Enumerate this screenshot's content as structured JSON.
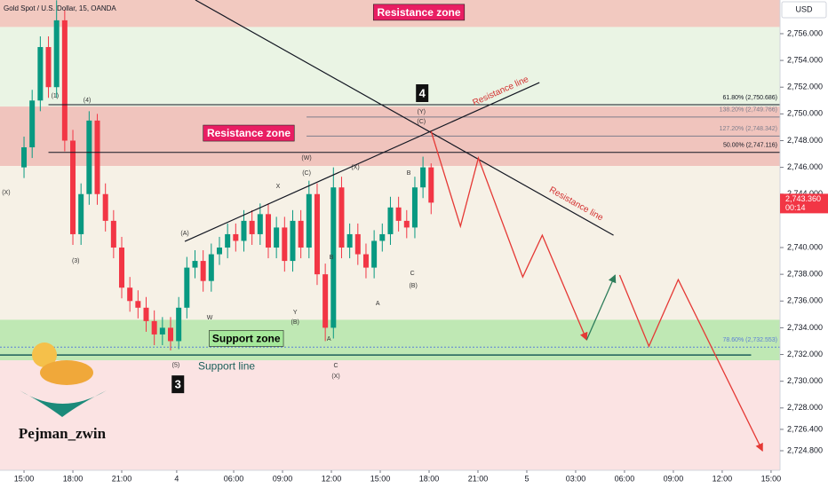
{
  "chart_data": {
    "type": "candlestick",
    "title": "Gold Spot / U.S. Dollar, 15, OANDA",
    "currency": "USD",
    "watermark": "Pejman_zwin",
    "up_color": "#089981",
    "down_color": "#f23645",
    "xlim": [
      -5.9,
      185.7
    ],
    "ylim": [
      2723.34,
      2758.52
    ],
    "xticks": [
      {
        "value": 0,
        "label": "15:00"
      },
      {
        "value": 12,
        "label": "18:00"
      },
      {
        "value": 24,
        "label": "21:00"
      },
      {
        "value": 37.5,
        "label": "4"
      },
      {
        "value": 51.5,
        "label": "06:00"
      },
      {
        "value": 63.5,
        "label": "09:00"
      },
      {
        "value": 75.5,
        "label": "12:00"
      },
      {
        "value": 87.5,
        "label": "15:00"
      },
      {
        "value": 99.5,
        "label": "18:00"
      },
      {
        "value": 111.5,
        "label": "21:00"
      },
      {
        "value": 123.5,
        "label": "5"
      },
      {
        "value": 135.5,
        "label": "03:00"
      },
      {
        "value": 147.5,
        "label": "06:00"
      },
      {
        "value": 159.5,
        "label": "09:00"
      },
      {
        "value": 171.5,
        "label": "12:00"
      },
      {
        "value": 183.5,
        "label": "15:00"
      }
    ],
    "yticks": [
      {
        "value": 2756,
        "label": "2,756.000"
      },
      {
        "value": 2754,
        "label": "2,754.000"
      },
      {
        "value": 2752,
        "label": "2,752.000"
      },
      {
        "value": 2750,
        "label": "2,750.000"
      },
      {
        "value": 2748,
        "label": "2,748.000"
      },
      {
        "value": 2746,
        "label": "2,746.000"
      },
      {
        "value": 2744,
        "label": "2,744.000"
      },
      {
        "value": 2740,
        "label": "2,740.000"
      },
      {
        "value": 2738,
        "label": "2,738.000"
      },
      {
        "value": 2736,
        "label": "2,736.000"
      },
      {
        "value": 2734,
        "label": "2,734.000"
      },
      {
        "value": 2732,
        "label": "2,732.000"
      },
      {
        "value": 2730,
        "label": "2,730.000"
      },
      {
        "value": 2728,
        "label": "2,728.000"
      },
      {
        "value": 2726.4,
        "label": "2,726.400"
      },
      {
        "value": 2724.8,
        "label": "2,724.800"
      }
    ],
    "last_price": {
      "value": 2743.36,
      "label": "2,743.360",
      "countdown": "00:14"
    },
    "x": [
      0,
      2,
      4,
      6,
      8,
      10,
      12,
      14,
      16,
      18,
      20,
      22,
      24,
      26,
      28,
      30,
      32,
      34,
      36,
      38,
      40,
      42,
      44,
      46,
      48,
      50,
      52,
      54,
      56,
      58,
      60,
      62,
      64,
      66,
      68,
      70,
      72,
      74,
      76,
      78,
      80,
      82,
      84,
      86,
      88,
      90,
      92,
      94,
      96,
      98,
      100
    ],
    "open": [
      2746,
      2747.5,
      2751,
      2755,
      2752,
      2757,
      2748,
      2741,
      2744,
      2749.5,
      2744,
      2742,
      2740,
      2737,
      2736,
      2735.5,
      2734.5,
      2733.5,
      2734,
      2733,
      2735.5,
      2738.5,
      2739,
      2737.5,
      2739.5,
      2740,
      2741,
      2740.5,
      2742,
      2741,
      2742.5,
      2740,
      2741.5,
      2739,
      2742,
      2740,
      2744,
      2738,
      2734,
      2744.5,
      2740,
      2741,
      2739.5,
      2738.5,
      2740.5,
      2741,
      2743,
      2742,
      2741.5,
      2744.5,
      2746
    ],
    "high": [
      2748.3,
      2751.8,
      2755.8,
      2755.8,
      2758.5,
      2757.8,
      2748.8,
      2744.8,
      2750.2,
      2750,
      2744.8,
      2742.8,
      2740.8,
      2737.8,
      2736.8,
      2736.3,
      2735.3,
      2734.8,
      2734.8,
      2736.3,
      2739.3,
      2739.8,
      2739.8,
      2740.3,
      2740.8,
      2741.8,
      2741.8,
      2742.8,
      2742.8,
      2743.3,
      2743.3,
      2742.3,
      2742.3,
      2742.8,
      2742.8,
      2745,
      2744.8,
      2738.8,
      2746,
      2745.3,
      2741.8,
      2741.8,
      2740.3,
      2741.3,
      2741.8,
      2743.8,
      2743.8,
      2742.8,
      2745.3,
      2746.8,
      2746.3
    ],
    "low": [
      2745.2,
      2746.7,
      2750.2,
      2751.2,
      2751.2,
      2747.2,
      2740.2,
      2740.2,
      2743.2,
      2743.2,
      2741.2,
      2739.2,
      2736.2,
      2735.2,
      2734.7,
      2733.7,
      2732.7,
      2732.7,
      2732.3,
      2732.4,
      2734.7,
      2737.7,
      2736.7,
      2736.7,
      2738.7,
      2739.2,
      2739.7,
      2739.7,
      2740.2,
      2740.2,
      2739.2,
      2739.2,
      2738.2,
      2738.2,
      2739.2,
      2739.2,
      2737.2,
      2733,
      2733.2,
      2739.2,
      2739.2,
      2738.7,
      2737.7,
      2737.7,
      2739.7,
      2740.2,
      2741.2,
      2740.7,
      2740.7,
      2743.7,
      2742.5
    ],
    "close": [
      2747.5,
      2751,
      2755,
      2752,
      2757,
      2748,
      2741,
      2744,
      2749.5,
      2744,
      2742,
      2740,
      2737,
      2736,
      2735.5,
      2734.5,
      2733.5,
      2734,
      2733,
      2735.5,
      2738.5,
      2739,
      2737.5,
      2739.5,
      2740,
      2741,
      2740.5,
      2742,
      2741,
      2742.5,
      2740,
      2741.5,
      2739,
      2742,
      2740,
      2744,
      2738,
      2734,
      2744.5,
      2740,
      2741,
      2739.5,
      2738.5,
      2740.5,
      2741,
      2743,
      2742,
      2741.5,
      2744.5,
      2746,
      2743.36
    ],
    "bands": [
      {
        "from": 2756.5,
        "to": 2758.52,
        "color": "#f2c9c0"
      },
      {
        "from": 2750.55,
        "to": 2756.5,
        "color": "#eaf4e4"
      },
      {
        "from": 2746.1,
        "to": 2750.55,
        "color": "#f0c4bd"
      },
      {
        "from": 2734.6,
        "to": 2746.1,
        "color": "#f6f1e6"
      },
      {
        "from": 2731.56,
        "to": 2734.6,
        "color": "#bfe8b4"
      },
      {
        "from": 2723.34,
        "to": 2731.56,
        "color": "#fbe3e3"
      }
    ],
    "zones": [
      {
        "label": "Resistance zone",
        "x": 97,
        "y": 2757.6,
        "color": "#e91e63",
        "text_color": "#ffffff"
      },
      {
        "label": "Resistance zone",
        "x": 55.2,
        "y": 2748.56,
        "color": "#e91e63",
        "text_color": "#ffffff"
      },
      {
        "label": "Support zone",
        "x": 54.6,
        "y": 2733.2,
        "color": "#a5e89a",
        "text_color": "#000000"
      }
    ],
    "lines": [
      {
        "name": "Resistance line",
        "x": [
          42.1,
          144.8
        ],
        "y": [
          2758.52,
          2740.92
        ],
        "color": "#131722",
        "label_color": "#d32f2f"
      },
      {
        "name": "Resistance line",
        "x": [
          39.5,
          126.6
        ],
        "y": [
          2740.46,
          2752.34
        ],
        "color": "#131722",
        "label_color": "#d32f2f"
      },
      {
        "name": "Support line",
        "x": [
          -5.9,
          178.6
        ],
        "y": [
          2731.96,
          2731.96
        ],
        "color": "#1b5e5a",
        "label_color": "#1b5e5a"
      }
    ],
    "fib_levels": [
      {
        "label": "61.80% (2,750.686)",
        "value": 2750.686,
        "start": 6,
        "color": "#131722"
      },
      {
        "label": "138.20% (2,749.766)",
        "value": 2749.766,
        "start": 69.4,
        "color": "#7e7e8c"
      },
      {
        "label": "127.20% (2,748.342)",
        "value": 2748.342,
        "start": 69.4,
        "color": "#7e7e8c"
      },
      {
        "label": "50.00% (2,747.116)",
        "value": 2747.116,
        "start": 6,
        "color": "#131722"
      },
      {
        "label": "78.60% (2,732.553)",
        "value": 2732.553,
        "start": -5.9,
        "color": "#5b7fd6"
      }
    ],
    "projection": [
      {
        "color": "#e53935",
        "x": [
          100,
          107.2,
          111.6,
          122.5,
          127.3,
          138.2
        ],
        "y": [
          2748.69,
          2741.59,
          2746.7,
          2737.8,
          2740.92,
          2733.09
        ]
      },
      {
        "color": "#2e7d5b",
        "x": [
          138.2,
          145.2
        ],
        "y": [
          2733.09,
          2737.94
        ]
      },
      {
        "color": "#e53935",
        "x": [
          146.3,
          153.5,
          160.7,
          181.4
        ],
        "y": [
          2737.94,
          2732.62,
          2737.6,
          2724.79
        ]
      }
    ],
    "wave_labels": [
      {
        "text": "4",
        "x": 97.8,
        "y": 2751.55
      },
      {
        "text": "3",
        "x": 37.8,
        "y": 2729.77
      }
    ],
    "annotations": [
      {
        "text": "(X)",
        "x": -4.4,
        "y": 2744.1
      },
      {
        "text": "(1)",
        "x": 7.6,
        "y": 2751.35
      },
      {
        "text": "(4)",
        "x": 15.5,
        "y": 2751.0
      },
      {
        "text": "(3)",
        "x": 12.7,
        "y": 2739.0
      },
      {
        "text": "(5)",
        "x": 37.3,
        "y": 2731.2
      },
      {
        "text": "(A)",
        "x": 39.5,
        "y": 2741.05
      },
      {
        "text": "W",
        "x": 45.6,
        "y": 2734.75
      },
      {
        "text": "X",
        "x": 62.4,
        "y": 2744.57
      },
      {
        "text": "(W)",
        "x": 69.4,
        "y": 2746.7
      },
      {
        "text": "(C)",
        "x": 69.4,
        "y": 2745.57
      },
      {
        "text": "Y",
        "x": 66.6,
        "y": 2735.15
      },
      {
        "text": "(B)",
        "x": 66.6,
        "y": 2734.42
      },
      {
        "text": "B",
        "x": 75.5,
        "y": 2739.26
      },
      {
        "text": "A",
        "x": 74.9,
        "y": 2733.16
      },
      {
        "text": "C",
        "x": 76.6,
        "y": 2731.16
      },
      {
        "text": "(X)",
        "x": 76.6,
        "y": 2730.37
      },
      {
        "text": "(X)",
        "x": 81.4,
        "y": 2746.0
      },
      {
        "text": "A",
        "x": 86.9,
        "y": 2735.8
      },
      {
        "text": "B",
        "x": 94.5,
        "y": 2745.57
      },
      {
        "text": "C",
        "x": 95.4,
        "y": 2738.07
      },
      {
        "text": "(B)",
        "x": 95.6,
        "y": 2737.14
      },
      {
        "text": "(Y)",
        "x": 97.6,
        "y": 2750.15
      },
      {
        "text": "(C)",
        "x": 97.6,
        "y": 2749.42
      }
    ]
  }
}
